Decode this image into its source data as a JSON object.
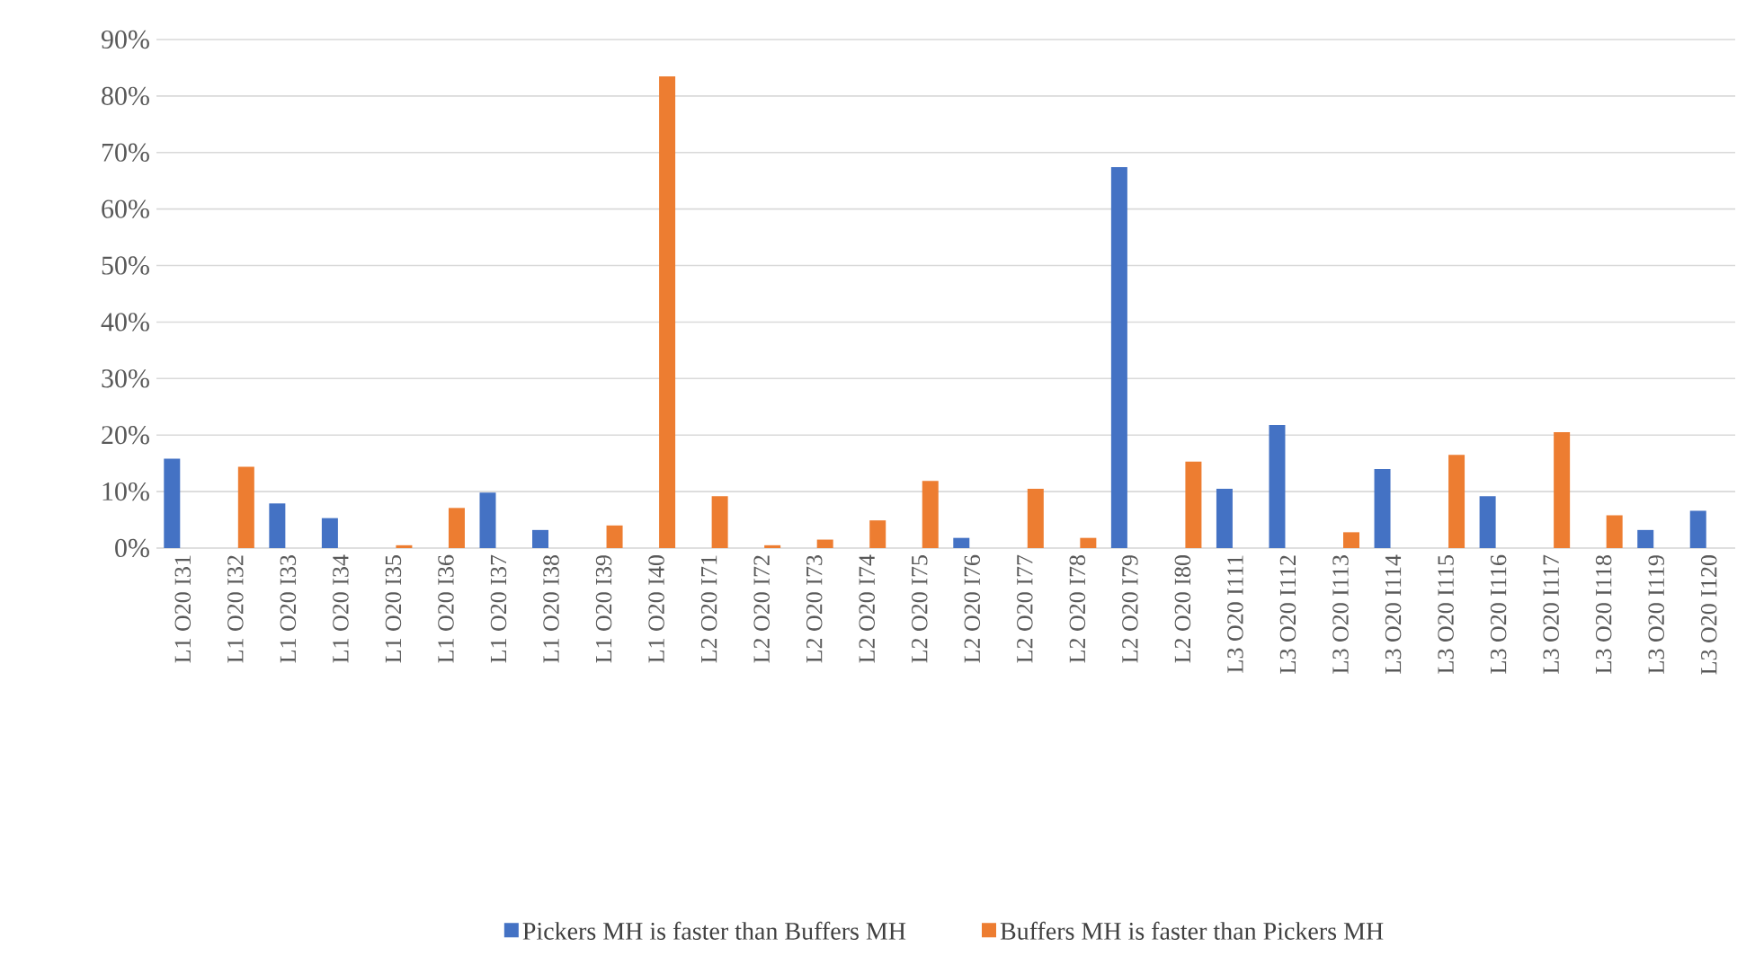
{
  "chart_data": {
    "type": "bar",
    "categories": [
      "L1 O20 I31",
      "L1 O20 I32",
      "L1 O20 I33",
      "L1 O20 I34",
      "L1 O20 I35",
      "L1 O20 I36",
      "L1 O20 I37",
      "L1 O20 I38",
      "L1 O20 I39",
      "L1 O20 I40",
      "L2 O20 I71",
      "L2 O20 I72",
      "L2 O20 I73",
      "L2 O20 I74",
      "L2 O20 I75",
      "L2 O20 I76",
      "L2 O20 I77",
      "L2 O20 I78",
      "L2 O20 I79",
      "L2 O20 I80",
      "L3 O20 I111",
      "L3 O20 I112",
      "L3 O20 I113",
      "L3 O20 I114",
      "L3 O20 I115",
      "L3 O20 I116",
      "L3 O20 I117",
      "L3 O20 I118",
      "L3 O20 I119",
      "L3 O20 I120"
    ],
    "series": [
      {
        "name": "Pickers MH is faster than Buffers MH",
        "color": "#4472c4",
        "values": [
          15.8,
          0,
          7.9,
          5.3,
          0,
          0,
          9.8,
          3.2,
          0,
          0,
          0,
          0,
          0,
          0,
          0,
          1.8,
          0,
          0,
          67.4,
          0,
          10.5,
          21.8,
          0,
          14.0,
          0,
          9.2,
          0,
          0,
          3.2,
          6.6
        ]
      },
      {
        "name": "Buffers MH is faster than Pickers MH",
        "color": "#ed7d31",
        "values": [
          0,
          14.4,
          0,
          0,
          0.5,
          7.1,
          0,
          0,
          4.0,
          83.5,
          9.2,
          0.5,
          1.5,
          4.9,
          11.9,
          0,
          10.5,
          1.8,
          0,
          15.3,
          0,
          0,
          2.8,
          0,
          16.5,
          0,
          20.5,
          5.8,
          0,
          0
        ]
      }
    ],
    "ylim": [
      0,
      90
    ],
    "yticks": [
      {
        "value": 0,
        "label": "0%"
      },
      {
        "value": 10,
        "label": "10%"
      },
      {
        "value": 20,
        "label": "20%"
      },
      {
        "value": 30,
        "label": "30%"
      },
      {
        "value": 40,
        "label": "40%"
      },
      {
        "value": 50,
        "label": "50%"
      },
      {
        "value": 60,
        "label": "60%"
      },
      {
        "value": 70,
        "label": "70%"
      },
      {
        "value": 80,
        "label": "80%"
      },
      {
        "value": 90,
        "label": "90%"
      }
    ],
    "grid": "y",
    "legend": "bottom"
  }
}
